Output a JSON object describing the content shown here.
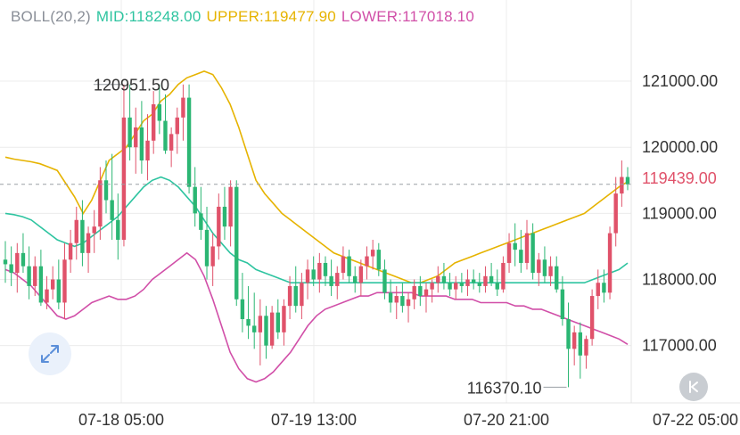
{
  "legend": {
    "indicator": "BOLL(20,2)",
    "mid": "MID:118248.00",
    "upper": "UPPER:119477.90",
    "lower": "LOWER:117018.10"
  },
  "current_price": "119439.00",
  "annotations": {
    "high": "120951.50",
    "low": "116370.10"
  },
  "colors": {
    "up": "#e0526a",
    "down": "#2bb673",
    "mid": "#2ec4a0",
    "upper": "#e6b300",
    "lower": "#d14fa8",
    "axis_text": "#333333",
    "grid": "#ececec"
  },
  "icons": [
    "expand-icon",
    "collapse-icon"
  ],
  "chart_data": {
    "type": "candlestick",
    "y_ticks": [
      "121000.00",
      "120000.00",
      "119000.00",
      "118000.00",
      "117000.00"
    ],
    "x_ticks": [
      "07-18 05:00",
      "07-19 13:00",
      "07-20 21:00",
      "07-22 05:00"
    ],
    "ylim": [
      116200,
      121850
    ],
    "candles": [
      [
        118300,
        118580,
        117950,
        118230
      ],
      [
        118230,
        118500,
        117900,
        118100
      ],
      [
        118100,
        118550,
        117800,
        118400
      ],
      [
        118400,
        118700,
        118100,
        118200
      ],
      [
        118200,
        118500,
        117700,
        117900
      ],
      [
        117900,
        118350,
        117750,
        118200
      ],
      [
        118200,
        118450,
        117600,
        117650
      ],
      [
        117650,
        118050,
        117550,
        117850
      ],
      [
        117850,
        118200,
        117700,
        118000
      ],
      [
        118000,
        118300,
        117550,
        117650
      ],
      [
        117650,
        118550,
        117400,
        118300
      ],
      [
        118300,
        118750,
        118100,
        118550
      ],
      [
        118550,
        119100,
        118300,
        118900
      ],
      [
        118900,
        119200,
        118200,
        118400
      ],
      [
        118400,
        118800,
        118100,
        118700
      ],
      [
        118700,
        119050,
        118400,
        118800
      ],
      [
        118800,
        119700,
        118600,
        119500
      ],
      [
        119500,
        119800,
        119000,
        119200
      ],
      [
        119200,
        119900,
        118600,
        118900
      ],
      [
        118900,
        119300,
        118300,
        118600
      ],
      [
        118600,
        120950,
        118500,
        120450
      ],
      [
        120450,
        120950,
        119800,
        120000
      ],
      [
        120000,
        120600,
        119600,
        120300
      ],
      [
        120300,
        120700,
        119600,
        119800
      ],
      [
        119800,
        120500,
        119500,
        120100
      ],
      [
        120100,
        120850,
        119900,
        120650
      ],
      [
        120650,
        120950,
        120200,
        120400
      ],
      [
        120400,
        120800,
        119900,
        119950
      ],
      [
        119950,
        120300,
        119700,
        120200
      ],
      [
        120200,
        120600,
        119900,
        120450
      ],
      [
        120450,
        120950,
        120100,
        120750
      ],
      [
        120750,
        120950,
        119300,
        119400
      ],
      [
        119400,
        119700,
        118800,
        119000
      ],
      [
        119000,
        119400,
        118600,
        118750
      ],
      [
        118750,
        119100,
        118000,
        118200
      ],
      [
        118200,
        118700,
        117900,
        118500
      ],
      [
        118500,
        119300,
        118300,
        119100
      ],
      [
        119100,
        119400,
        118600,
        118800
      ],
      [
        118800,
        119500,
        118500,
        119400
      ],
      [
        119400,
        119500,
        117600,
        117700
      ],
      [
        117700,
        118100,
        117200,
        117400
      ],
      [
        117400,
        117900,
        117100,
        117300
      ],
      [
        117300,
        117800,
        116950,
        117200
      ],
      [
        117200,
        117700,
        116700,
        117450
      ],
      [
        117450,
        117600,
        116800,
        117000
      ],
      [
        117000,
        117600,
        116950,
        117500
      ],
      [
        117500,
        117700,
        117100,
        117200
      ],
      [
        117200,
        117700,
        117000,
        117600
      ],
      [
        117600,
        118050,
        117400,
        117900
      ],
      [
        117900,
        118200,
        117500,
        117600
      ],
      [
        117600,
        118100,
        117400,
        117950
      ],
      [
        117950,
        118300,
        117700,
        118150
      ],
      [
        118150,
        118350,
        117900,
        118000
      ],
      [
        118000,
        118400,
        117800,
        118250
      ],
      [
        118250,
        118350,
        117900,
        118050
      ],
      [
        118050,
        118300,
        117750,
        117900
      ],
      [
        117900,
        118200,
        117700,
        118100
      ],
      [
        118100,
        118500,
        118000,
        118350
      ],
      [
        118350,
        118450,
        117950,
        118050
      ],
      [
        118050,
        118200,
        117800,
        117950
      ],
      [
        117950,
        118300,
        117750,
        118200
      ],
      [
        118200,
        118500,
        118000,
        118350
      ],
      [
        118350,
        118600,
        118150,
        118450
      ],
      [
        118450,
        118550,
        118050,
        118150
      ],
      [
        118150,
        118300,
        117700,
        117800
      ],
      [
        117800,
        118000,
        117500,
        117650
      ],
      [
        117650,
        117900,
        117400,
        117750
      ],
      [
        117750,
        117950,
        117500,
        117600
      ],
      [
        117600,
        117800,
        117350,
        117700
      ],
      [
        117700,
        118000,
        117550,
        117900
      ],
      [
        117900,
        118050,
        117600,
        117750
      ],
      [
        117750,
        117950,
        117500,
        117850
      ],
      [
        117850,
        118000,
        117650,
        117950
      ],
      [
        117950,
        118200,
        117800,
        118050
      ],
      [
        118050,
        118250,
        117850,
        117950
      ],
      [
        117950,
        118100,
        117750,
        117850
      ],
      [
        117850,
        118050,
        117700,
        117950
      ],
      [
        117950,
        118100,
        117800,
        117900
      ],
      [
        117900,
        118150,
        117750,
        118000
      ],
      [
        118000,
        118150,
        117850,
        117950
      ],
      [
        117950,
        118100,
        117800,
        117900
      ],
      [
        117900,
        118200,
        117800,
        118050
      ],
      [
        118050,
        118250,
        117900,
        117950
      ],
      [
        117950,
        118150,
        117750,
        117850
      ],
      [
        117850,
        118350,
        117800,
        118250
      ],
      [
        118250,
        118700,
        118100,
        118550
      ],
      [
        118550,
        118850,
        118200,
        118450
      ],
      [
        118450,
        118750,
        118100,
        118250
      ],
      [
        118250,
        118900,
        118150,
        118700
      ],
      [
        118700,
        118850,
        118000,
        118100
      ],
      [
        118100,
        118400,
        117900,
        118300
      ],
      [
        118300,
        118500,
        117950,
        118050
      ],
      [
        118050,
        118350,
        117900,
        118200
      ],
      [
        118200,
        118350,
        117800,
        117850
      ],
      [
        117850,
        118050,
        117300,
        117400
      ],
      [
        117400,
        117650,
        116370,
        116950
      ],
      [
        116950,
        117300,
        116700,
        117200
      ],
      [
        117200,
        117350,
        116500,
        116850
      ],
      [
        116850,
        117150,
        116650,
        117100
      ],
      [
        117100,
        117850,
        117000,
        117750
      ],
      [
        117750,
        118150,
        117550,
        117950
      ],
      [
        117950,
        118150,
        117650,
        117800
      ],
      [
        117800,
        118800,
        117700,
        118700
      ],
      [
        118700,
        119550,
        118500,
        119300
      ],
      [
        119300,
        119800,
        119100,
        119550
      ],
      [
        119550,
        119700,
        119350,
        119439
      ]
    ],
    "upper_band": [
      119850,
      119820,
      119800,
      119780,
      119750,
      119700,
      119650,
      119450,
      119250,
      119000,
      119200,
      119500,
      119800,
      119900,
      120000,
      120200,
      120400,
      120500,
      120700,
      120800,
      120950,
      121050,
      121100,
      121150,
      121100,
      120900,
      120650,
      120300,
      119900,
      119500,
      119300,
      119150,
      119000,
      118900,
      118800,
      118700,
      118600,
      118500,
      118400,
      118350,
      118300,
      118250,
      118200,
      118150,
      118100,
      118050,
      118000,
      117950,
      117950,
      118000,
      118050,
      118150,
      118250,
      118300,
      118350,
      118400,
      118450,
      118500,
      118550,
      118600,
      118650,
      118700,
      118750,
      118800,
      118850,
      118900,
      118950,
      119000,
      119100,
      119200,
      119300,
      119400,
      119478
    ],
    "mid_band": [
      119000,
      118980,
      118950,
      118900,
      118800,
      118700,
      118600,
      118550,
      118500,
      118550,
      118650,
      118750,
      118850,
      118950,
      119100,
      119250,
      119400,
      119500,
      119550,
      119500,
      119400,
      119250,
      119100,
      118900,
      118700,
      118550,
      118400,
      118300,
      118250,
      118150,
      118100,
      118050,
      118000,
      117950,
      117950,
      117950,
      117950,
      117950,
      117950,
      117950,
      117950,
      117950,
      117950,
      117950,
      117950,
      117950,
      117950,
      117950,
      117950,
      117950,
      117950,
      117950,
      117950,
      117950,
      117950,
      117950,
      117950,
      117950,
      117950,
      117950,
      117950,
      117950,
      117950,
      117950,
      117950,
      117950,
      117950,
      117950,
      118000,
      118050,
      118100,
      118150,
      118248
    ],
    "lower_band": [
      118150,
      118100,
      118000,
      117900,
      117750,
      117600,
      117450,
      117400,
      117450,
      117550,
      117650,
      117700,
      117750,
      117700,
      117700,
      117750,
      117850,
      118000,
      118100,
      118200,
      118300,
      118400,
      118300,
      118050,
      117700,
      117300,
      116900,
      116650,
      116500,
      116450,
      116500,
      116600,
      116750,
      116900,
      117100,
      117300,
      117450,
      117550,
      117600,
      117650,
      117700,
      117750,
      117750,
      117800,
      117800,
      117800,
      117800,
      117800,
      117750,
      117750,
      117750,
      117750,
      117700,
      117700,
      117700,
      117650,
      117650,
      117650,
      117650,
      117600,
      117600,
      117550,
      117550,
      117500,
      117450,
      117400,
      117350,
      117300,
      117250,
      117200,
      117150,
      117100,
      117018
    ]
  }
}
